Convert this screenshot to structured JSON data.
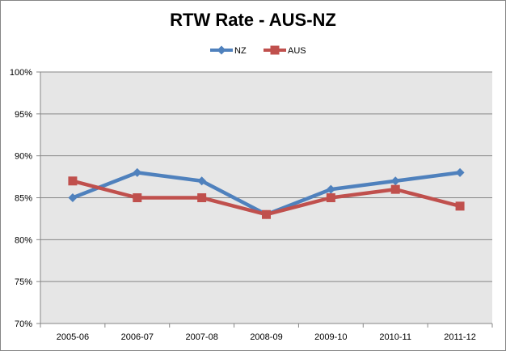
{
  "chart_data": {
    "type": "line",
    "title": "RTW Rate - AUS-NZ",
    "xlabel": "",
    "ylabel": "",
    "categories": [
      "2005-06",
      "2006-07",
      "2007-08",
      "2008-09",
      "2009-10",
      "2010-11",
      "2011-12"
    ],
    "series": [
      {
        "name": "NZ",
        "color": "#4F81BD",
        "marker": "diamond",
        "values": [
          85,
          88,
          87,
          83,
          86,
          87,
          88
        ]
      },
      {
        "name": "AUS",
        "color": "#C0504D",
        "marker": "square",
        "values": [
          87,
          85,
          85,
          83,
          85,
          86,
          84
        ]
      }
    ],
    "ylim": [
      70,
      100
    ],
    "yticks": [
      "70%",
      "75%",
      "80%",
      "85%",
      "90%",
      "95%",
      "100%"
    ],
    "grid": true,
    "legend": "top-center",
    "plot_background": "#E6E6E6"
  }
}
